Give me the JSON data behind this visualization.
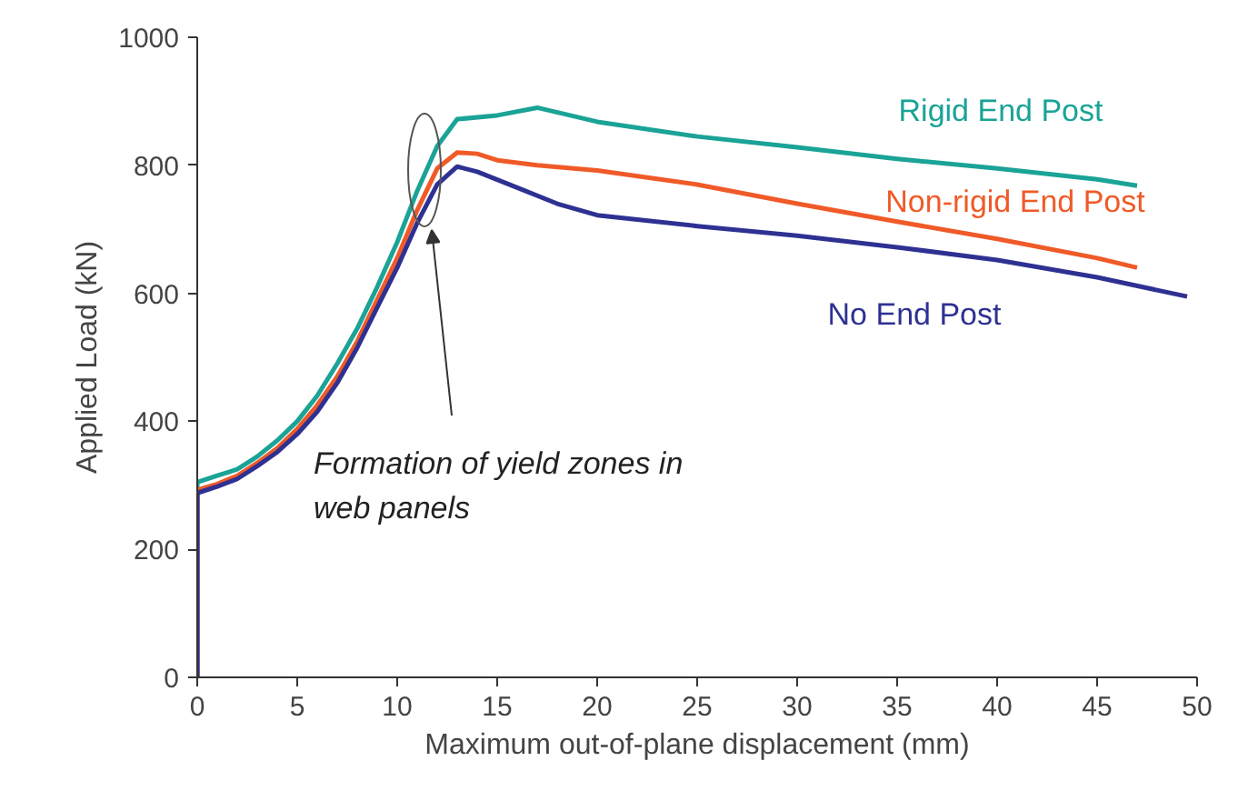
{
  "chart_data": {
    "type": "line",
    "xlabel": "Maximum out-of-plane displacement (mm)",
    "ylabel": "Applied Load (kN)",
    "xlim": [
      0,
      50
    ],
    "xticks": [
      0,
      5,
      10,
      15,
      20,
      25,
      30,
      35,
      40,
      45,
      50
    ],
    "ylim": [
      0,
      1000
    ],
    "yticks": [
      0,
      200,
      400,
      600,
      800,
      1000
    ],
    "grid": false,
    "marker": "none",
    "line_style": "solid",
    "series": [
      {
        "name": "Rigid End Post",
        "color": "#1aa396",
        "x": [
          0,
          0,
          1,
          2,
          3,
          4,
          5,
          6,
          7,
          8,
          9,
          10,
          11,
          12,
          13,
          15,
          17,
          20,
          25,
          30,
          35,
          40,
          45,
          47
        ],
        "values": [
          0,
          305,
          315,
          325,
          345,
          370,
          400,
          440,
          490,
          545,
          610,
          680,
          760,
          830,
          872,
          878,
          890,
          868,
          845,
          828,
          810,
          795,
          778,
          768
        ]
      },
      {
        "name": "Non-rigid End Post",
        "color": "#f05a28",
        "x": [
          0,
          0,
          1,
          2,
          3,
          4,
          5,
          6,
          7,
          8,
          9,
          10,
          11,
          12,
          13,
          14,
          15,
          17,
          20,
          25,
          30,
          35,
          40,
          45,
          47
        ],
        "values": [
          0,
          293,
          302,
          315,
          335,
          358,
          388,
          425,
          470,
          525,
          590,
          655,
          730,
          795,
          820,
          818,
          808,
          800,
          792,
          770,
          740,
          712,
          685,
          655,
          640
        ]
      },
      {
        "name": "No End Post",
        "color": "#2e3192",
        "x": [
          0,
          0,
          1,
          2,
          3,
          4,
          5,
          6,
          7,
          8,
          9,
          10,
          11,
          12,
          13,
          14,
          16,
          18,
          20,
          25,
          30,
          35,
          40,
          45,
          49.5
        ],
        "values": [
          0,
          288,
          298,
          310,
          330,
          352,
          380,
          415,
          460,
          515,
          578,
          640,
          710,
          770,
          798,
          790,
          765,
          740,
          722,
          705,
          690,
          672,
          652,
          625,
          595
        ]
      }
    ],
    "annotations": [
      "Formation of yield zones in\nweb panels"
    ]
  }
}
